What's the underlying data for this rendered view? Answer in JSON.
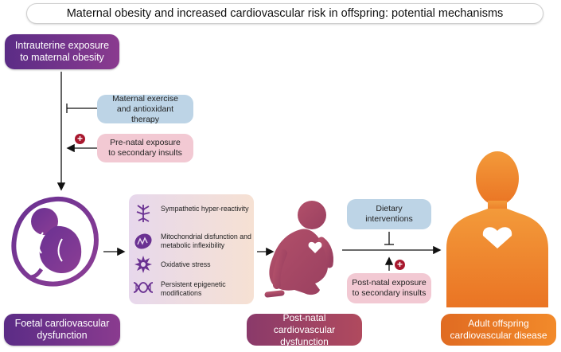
{
  "title": "Maternal obesity and increased cardiovascular risk in offspring: potential mechanisms",
  "intrauterine": "Intrauterine exposure to maternal obesity",
  "maternal_exercise": "Maternal exercise and antioxidant therapy",
  "prenatal_insults": "Pre-natal exposure to secondary insults",
  "mechanisms": [
    {
      "label": "Sympathetic hyper-reactivity",
      "icon": "nerve-icon"
    },
    {
      "label": "Mitochondrial disfunction and metabolic inflexibility",
      "icon": "mitochondria-icon"
    },
    {
      "label": "Oxidative stress",
      "icon": "oxidative-stress-icon"
    },
    {
      "label": "Persistent epigenetic modifications",
      "icon": "dna-icon"
    }
  ],
  "dietary": "Dietary interventions",
  "postnatal_insults": "Post-natal exposure to secondary insults",
  "foetal_label": "Foetal cardiovascular dysfunction",
  "postnatal_label": "Post-natal cardiovascular dysfunction",
  "adult_label": "Adult offspring cardiovascular disease",
  "colors": {
    "purple": "#5b2c86",
    "rose": "#a3435f",
    "orange": "#f0822a",
    "blue": "#bdd4e6",
    "pink": "#f2c9d3",
    "plus": "#a8182e"
  }
}
